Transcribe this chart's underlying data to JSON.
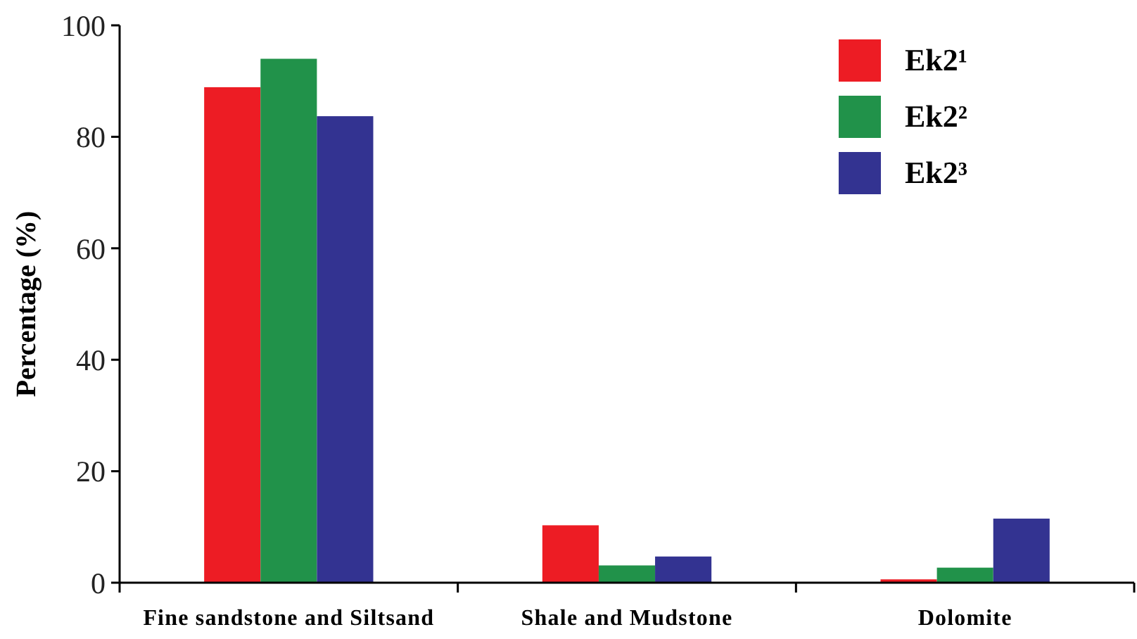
{
  "chart_data": {
    "type": "bar",
    "ylabel": "Percentage (%)",
    "categories": [
      "Fine sandstone and Siltsand",
      "Shale and Mudstone",
      "Dolomite"
    ],
    "series": [
      {
        "name": "Ek2¹",
        "color": "#ed1c24",
        "values": [
          88.9,
          10.3,
          0.6
        ]
      },
      {
        "name": "Ek2²",
        "color": "#21924a",
        "values": [
          94.0,
          3.1,
          2.7
        ]
      },
      {
        "name": "Ek2³",
        "color": "#333391",
        "values": [
          83.7,
          4.7,
          11.5
        ]
      }
    ],
    "ylim": [
      0,
      100
    ],
    "yticks": [
      0,
      20,
      40,
      60,
      80,
      100
    ],
    "grid": false,
    "legend": "top right"
  }
}
